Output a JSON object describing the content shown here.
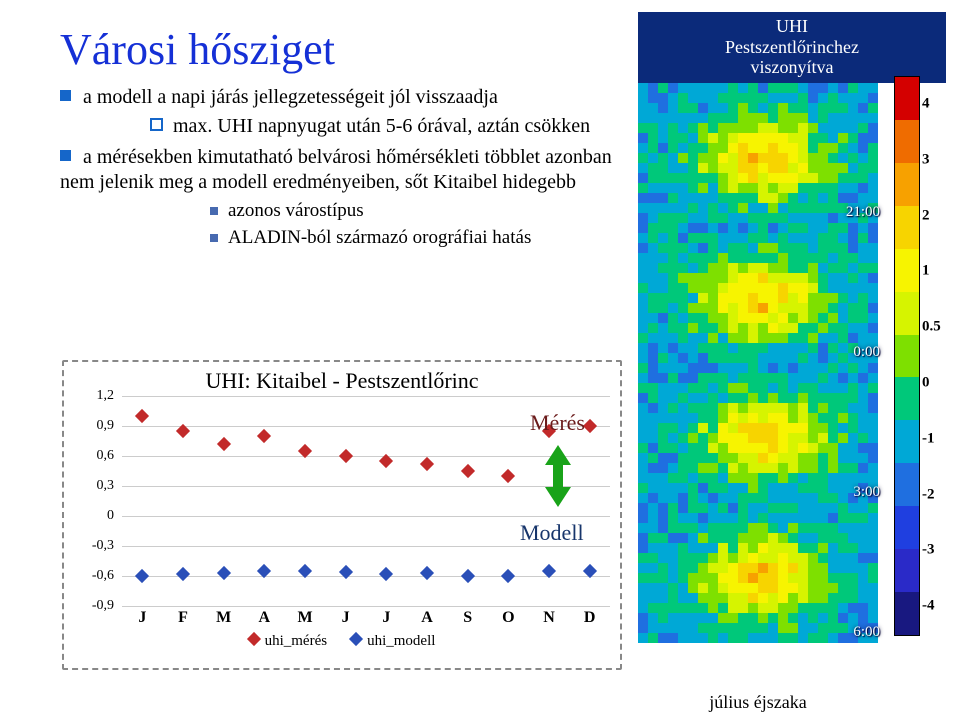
{
  "title": "Városi hősziget",
  "bullets": {
    "b1a": "a modell a napi járás jellegzetességeit jól visszaadja",
    "b2a": "max. UHI napnyugat után 5-6 órával, aztán csökken",
    "b1b": "a mérésekben kimutatható belvárosi hőmérsékleti többlet azonban nem jelenik meg a modell eredményeiben, sőt Kitaibel hidegebb",
    "b3a": "azonos várostípus",
    "b3b": "ALADIN-ból származó orográfiai hatás"
  },
  "chart": {
    "title": "UHI: Kitaibel - Pestszentlőrinc",
    "type": "scatter",
    "ylim": [
      -0.9,
      1.2
    ],
    "yticks": [
      -0.9,
      -0.6,
      -0.3,
      0,
      0.3,
      0.6,
      0.9,
      1.2
    ],
    "ytick_labels": [
      "-0,9",
      "-0,6",
      "-0,3",
      "0",
      "0,3",
      "0,6",
      "0,9",
      "1,2"
    ],
    "months": [
      "J",
      "F",
      "M",
      "A",
      "M",
      "J",
      "J",
      "A",
      "S",
      "O",
      "N",
      "D"
    ],
    "series": [
      {
        "name": "uhi_mérés",
        "color": "#c22a2a",
        "values": [
          1.0,
          0.85,
          0.72,
          0.8,
          0.65,
          0.6,
          0.55,
          0.52,
          0.45,
          0.4,
          0.85,
          0.9
        ]
      },
      {
        "name": "uhi_modell",
        "color": "#2a4fb8",
        "values": [
          -0.6,
          -0.58,
          -0.57,
          -0.55,
          -0.55,
          -0.56,
          -0.58,
          -0.57,
          -0.6,
          -0.6,
          -0.55,
          -0.55
        ]
      }
    ],
    "legend": [
      "uhi_mérés",
      "uhi_modell"
    ],
    "grid_color": "#cccccc",
    "background_color": "#ffffff",
    "marker_size": 10
  },
  "float": {
    "meres": "Mérés",
    "modell": "Modell"
  },
  "side": {
    "title_line1": "UHI",
    "title_line2": "Pestszentlőrinchez",
    "title_line3": "viszonyítva",
    "times": [
      "21:00",
      "0:00",
      "3:00",
      "6:00"
    ],
    "caption": "július éjszaka"
  },
  "colorbar": {
    "colors": [
      "#d40000",
      "#ef6c00",
      "#f7a100",
      "#f7d400",
      "#f7f400",
      "#d6f400",
      "#7ee000",
      "#00c87a",
      "#00a8d6",
      "#1f6fe0",
      "#1f3fe0",
      "#2a2ac8",
      "#181880"
    ],
    "labels": [
      "4",
      "3",
      "2",
      "1",
      "0.5",
      "0",
      "-1",
      "-2",
      "-3",
      "-4"
    ]
  },
  "colors": {
    "title": "#1530d6",
    "bullet": "#1566c9",
    "floatMeres": "#6b1b1b",
    "floatModell": "#17356b",
    "arrow": "#19a319"
  }
}
